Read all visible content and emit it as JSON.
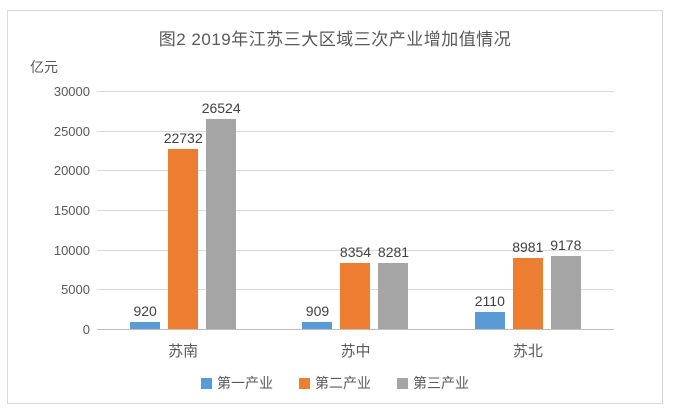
{
  "chart_data": {
    "type": "bar",
    "title": "图2 2019年江苏三大区域三次产业增加值情况",
    "xlabel": "",
    "ylabel": "亿元",
    "categories": [
      "苏南",
      "苏中",
      "苏北"
    ],
    "series": [
      {
        "name": "第一产业",
        "color": "#5B9BD5",
        "values": [
          920,
          909,
          2110
        ]
      },
      {
        "name": "第二产业",
        "color": "#ED7D31",
        "values": [
          22732,
          8354,
          8981
        ]
      },
      {
        "name": "第三产业",
        "color": "#A5A5A5",
        "values": [
          26524,
          8281,
          9178
        ]
      }
    ],
    "ylim": [
      0,
      30000
    ],
    "ytick_step": 5000,
    "yticks": [
      0,
      5000,
      10000,
      15000,
      20000,
      25000,
      30000
    ],
    "grid": true,
    "data_labels": true,
    "legend_position": "bottom"
  },
  "style": {
    "gridline_color": "#D9D9D9",
    "axis_line_color": "#BFBFBF",
    "text_color": "#595959",
    "frame_border_color": "#D9D9D9",
    "background_color": "#FFFFFF"
  }
}
